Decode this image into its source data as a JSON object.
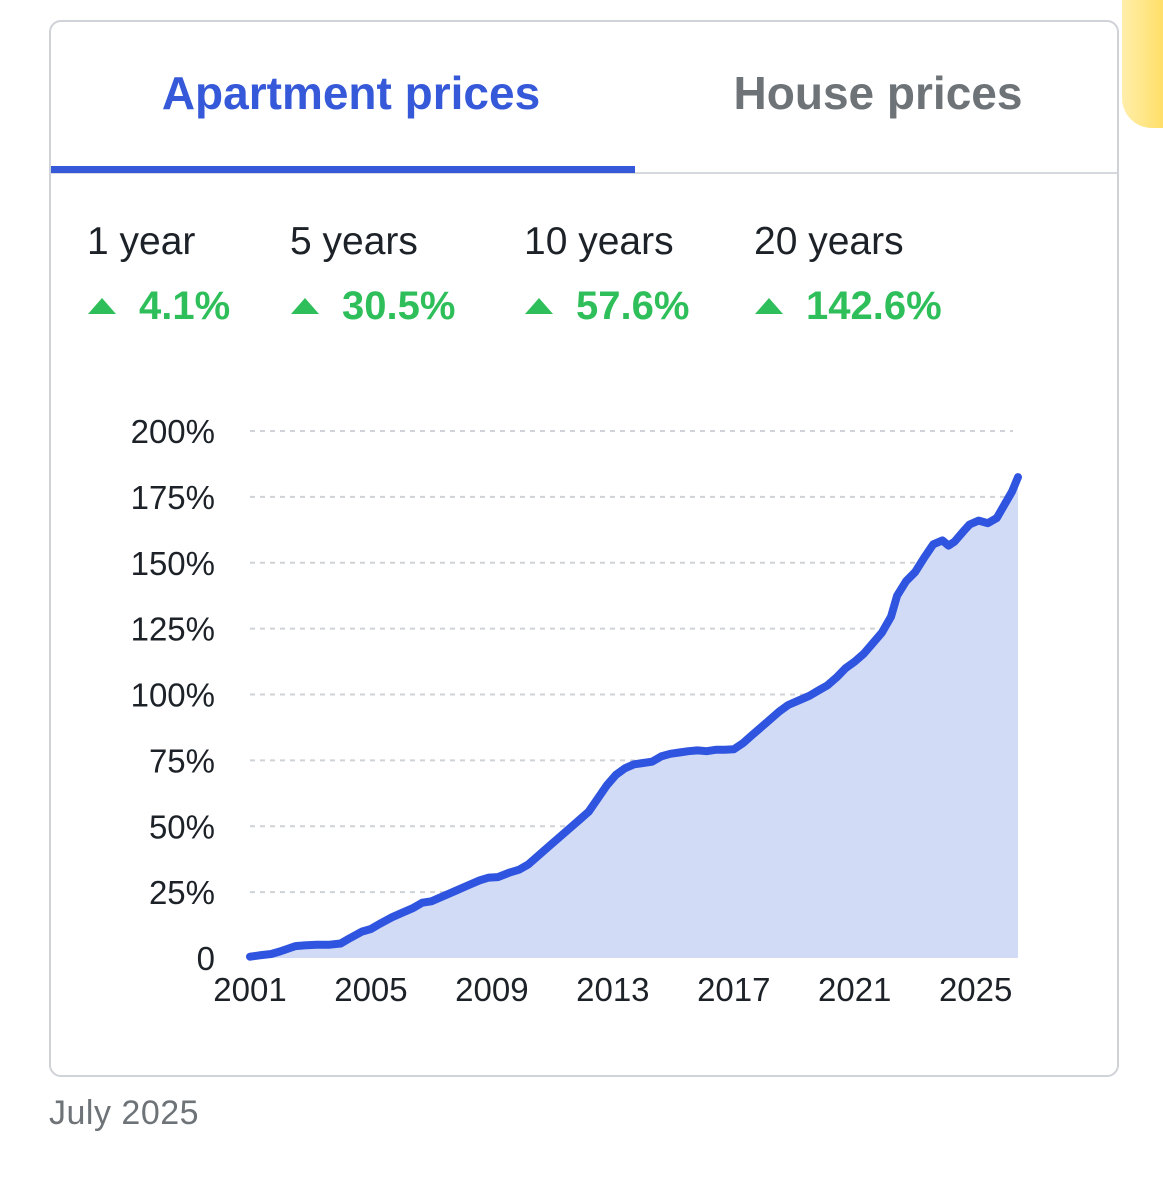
{
  "tabs": {
    "apartment": "Apartment prices",
    "house": "House prices",
    "active": "apartment"
  },
  "stats": [
    {
      "label": "1 year",
      "value": "4.1%",
      "direction": "up"
    },
    {
      "label": "5 years",
      "value": "30.5%",
      "direction": "up"
    },
    {
      "label": "10 years",
      "value": "57.6%",
      "direction": "up"
    },
    {
      "label": "20 years",
      "value": "142.6%",
      "direction": "up"
    }
  ],
  "colors": {
    "accent": "#3559d9",
    "line": "#2f54df",
    "fill": "#d2dbf6",
    "positive": "#2fbf5a",
    "muted": "#6e7378",
    "text": "#1d2228",
    "grid": "#cfd2d6"
  },
  "footer": {
    "date": "July 2025"
  },
  "chart_data": {
    "type": "area",
    "title": "",
    "xlabel": "",
    "ylabel": "",
    "xlim": [
      2001,
      2026.4
    ],
    "ylim": [
      0,
      200
    ],
    "x_ticks": [
      2001,
      2005,
      2009,
      2013,
      2017,
      2021,
      2025
    ],
    "x_tick_labels": [
      "2001",
      "2005",
      "2009",
      "2013",
      "2017",
      "2021",
      "2025"
    ],
    "y_ticks": [
      0,
      25,
      50,
      75,
      100,
      125,
      150,
      175,
      200
    ],
    "y_tick_labels": [
      "0",
      "25%",
      "50%",
      "75%",
      "100%",
      "125%",
      "150%",
      "175%",
      "200%"
    ],
    "grid": true,
    "series": [
      {
        "x": [
          2001.0,
          2001.3,
          2001.7,
          2002.0,
          2002.5,
          2002.8,
          2003.2,
          2003.6,
          2004.0,
          2004.3,
          2004.7,
          2005.0,
          2005.3,
          2005.7,
          2006.0,
          2006.4,
          2006.7,
          2007.0,
          2007.4,
          2007.8,
          2008.2,
          2008.6,
          2008.9,
          2009.2,
          2009.6,
          2009.9,
          2010.2,
          2010.5,
          2010.9,
          2011.2,
          2011.6,
          2011.9,
          2012.2,
          2012.5,
          2012.8,
          2013.1,
          2013.4,
          2013.7,
          2014.0,
          2014.3,
          2014.6,
          2014.9,
          2015.2,
          2015.5,
          2015.8,
          2016.1,
          2016.4,
          2016.7,
          2017.0,
          2017.3,
          2017.6,
          2017.9,
          2018.2,
          2018.5,
          2018.8,
          2019.1,
          2019.5,
          2019.8,
          2020.1,
          2020.4,
          2020.7,
          2021.0,
          2021.3,
          2021.6,
          2021.9,
          2022.2,
          2022.4,
          2022.7,
          2023.0,
          2023.3,
          2023.6,
          2023.9,
          2024.1,
          2024.3,
          2024.6,
          2024.8,
          2025.1,
          2025.4,
          2025.7,
          2025.9,
          2026.2,
          2026.4
        ],
        "y": [
          0.5,
          1,
          1.5,
          2.5,
          4.5,
          4.8,
          5,
          5,
          5.5,
          7.5,
          10,
          11,
          13,
          15.5,
          17,
          19,
          21,
          21.5,
          23.5,
          25.5,
          27.5,
          29.5,
          30.5,
          30.7,
          32.5,
          33.5,
          35.5,
          38.5,
          42.5,
          45.5,
          49.5,
          52.5,
          55.5,
          60.5,
          65.5,
          69.5,
          72,
          73.5,
          74,
          74.5,
          76.5,
          77.5,
          78,
          78.5,
          78.8,
          78.5,
          79,
          79,
          79.2,
          81.5,
          84.5,
          87.5,
          90.5,
          93.5,
          96,
          97.5,
          99.5,
          101.5,
          103.5,
          106.5,
          110,
          112.5,
          115.5,
          119.5,
          123.5,
          129.5,
          137.5,
          143,
          146.5,
          152,
          157,
          158.5,
          156.5,
          158,
          162,
          164.5,
          166,
          165,
          167,
          171,
          177,
          182.5
        ]
      }
    ]
  }
}
